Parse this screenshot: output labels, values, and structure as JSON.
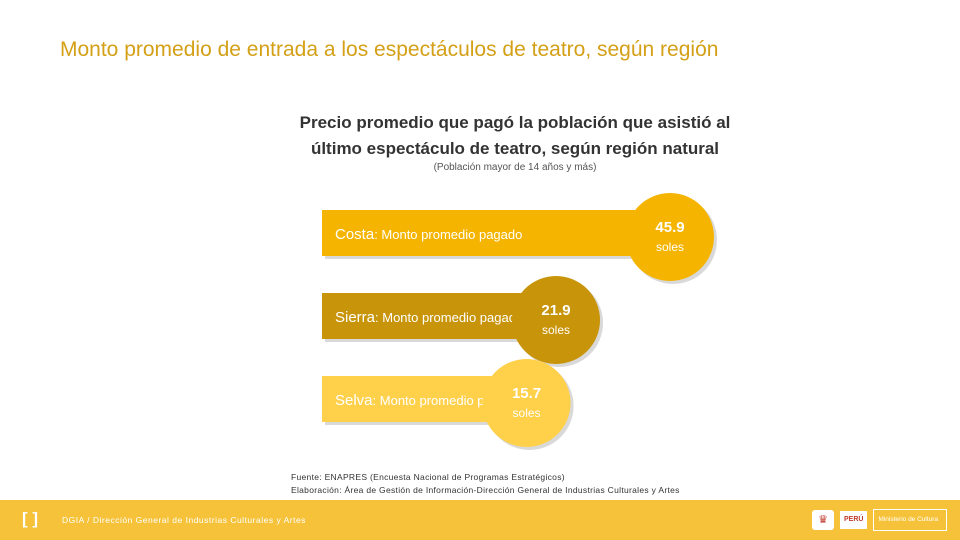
{
  "page_title": "Monto promedio de entrada a los espectáculos de teatro, según región",
  "chart_data": {
    "type": "bar",
    "title": "Precio promedio que pagó la población que asistió al último espectáculo de teatro, según región natural",
    "title_lines": [
      "Precio promedio que pagó la población que asistió al",
      "último espectáculo de teatro, según región natural"
    ],
    "subtitle": "(Población mayor de 14 años y más)",
    "categories": [
      "Costa",
      "Sierra",
      "Selva"
    ],
    "bar_label": ": Monto promedio pagado",
    "values": [
      45.9,
      21.9,
      15.7
    ],
    "value_labels": [
      "45.9",
      "21.9",
      "15.7"
    ],
    "unit": "soles",
    "colors": [
      "#f4b400",
      "#c8940a",
      "#ffd04a"
    ]
  },
  "source": {
    "line1": "Fuente: ENAPRES (Encuesta Nacional de Programas Estratégicos)",
    "line2": "Elaboración: Área de Gestión de Información-Dirección General de Industrias Culturales y Artes"
  },
  "footer": {
    "logo": "[ ]",
    "text": "DGIA / Dirección General de Industrias Culturales y Artes",
    "emblem_icon": "peru-coat-of-arms-icon",
    "peru_label": "PERÚ",
    "ministry_label": "Ministerio de Cultura",
    "color": "#f5c23a"
  }
}
